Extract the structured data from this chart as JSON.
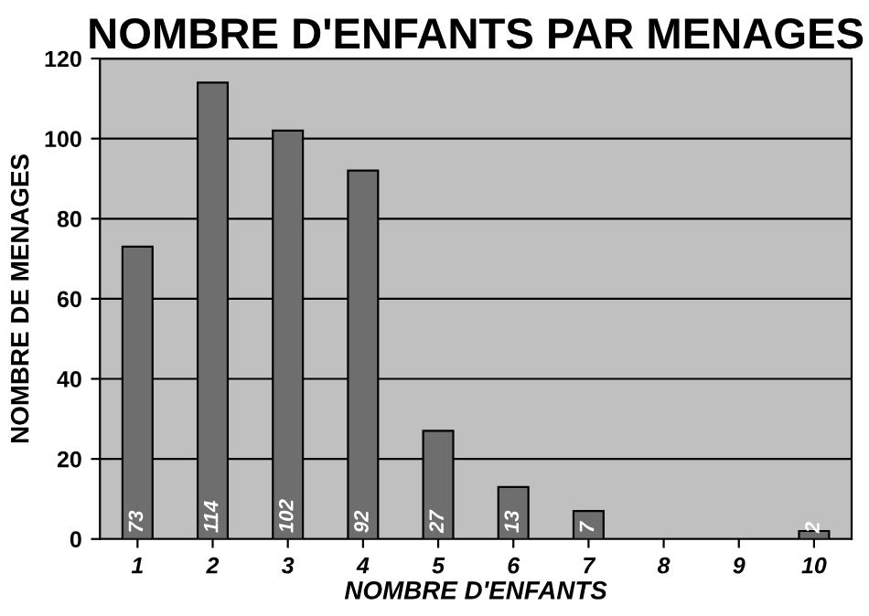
{
  "chart_data": {
    "type": "bar",
    "title": "NOMBRE D'ENFANTS PAR MENAGES",
    "xlabel": "NOMBRE D'ENFANTS",
    "ylabel": "NOMBRE DE MENAGES",
    "categories": [
      "1",
      "2",
      "3",
      "4",
      "5",
      "6",
      "7",
      "8",
      "9",
      "10"
    ],
    "values": [
      73,
      114,
      102,
      92,
      27,
      13,
      7,
      null,
      null,
      2
    ],
    "color": "#6e6e6e",
    "ylim": [
      0,
      120
    ],
    "yticks": [
      0,
      20,
      40,
      60,
      80,
      100,
      120
    ],
    "grid": "y",
    "data_labels": true,
    "legend": false
  }
}
